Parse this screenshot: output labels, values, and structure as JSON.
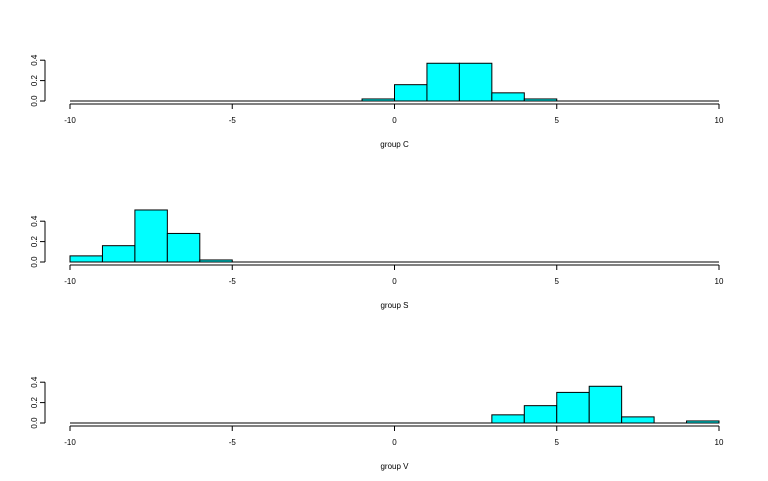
{
  "chart_data": [
    {
      "type": "histogram",
      "xlabel": "group C",
      "xlim": [
        -10,
        10
      ],
      "ylim": [
        0,
        0.5
      ],
      "x_ticks": [
        -10,
        -5,
        0,
        5,
        10
      ],
      "y_ticks": [
        0.0,
        0.2,
        0.4
      ],
      "y_tick_labels": [
        "0.0",
        "0.2",
        "0.4"
      ],
      "bin_edges": [
        -1,
        0,
        1,
        2,
        3,
        4,
        5
      ],
      "values": [
        0.02,
        0.16,
        0.37,
        0.37,
        0.08,
        0.02
      ],
      "fill": "#00ffff"
    },
    {
      "type": "histogram",
      "xlabel": "group S",
      "xlim": [
        -10,
        10
      ],
      "ylim": [
        0,
        0.5
      ],
      "x_ticks": [
        -10,
        -5,
        0,
        5,
        10
      ],
      "y_ticks": [
        0.0,
        0.2,
        0.4
      ],
      "y_tick_labels": [
        "0.0",
        "0.2",
        "0.4"
      ],
      "bin_edges": [
        -10,
        -9,
        -8,
        -7,
        -6,
        -5
      ],
      "values": [
        0.06,
        0.16,
        0.51,
        0.28,
        0.02
      ],
      "fill": "#00ffff"
    },
    {
      "type": "histogram",
      "xlabel": "group V",
      "xlim": [
        -10,
        10
      ],
      "ylim": [
        0,
        0.5
      ],
      "x_ticks": [
        -10,
        -5,
        0,
        5,
        10
      ],
      "y_ticks": [
        0.0,
        0.2,
        0.4
      ],
      "y_tick_labels": [
        "0.0",
        "0.2",
        "0.4"
      ],
      "bin_edges": [
        3,
        4,
        5,
        6,
        7,
        8,
        9,
        10
      ],
      "values": [
        0.08,
        0.17,
        0.3,
        0.36,
        0.06,
        0.0,
        0.02
      ],
      "fill": "#00ffff"
    }
  ]
}
